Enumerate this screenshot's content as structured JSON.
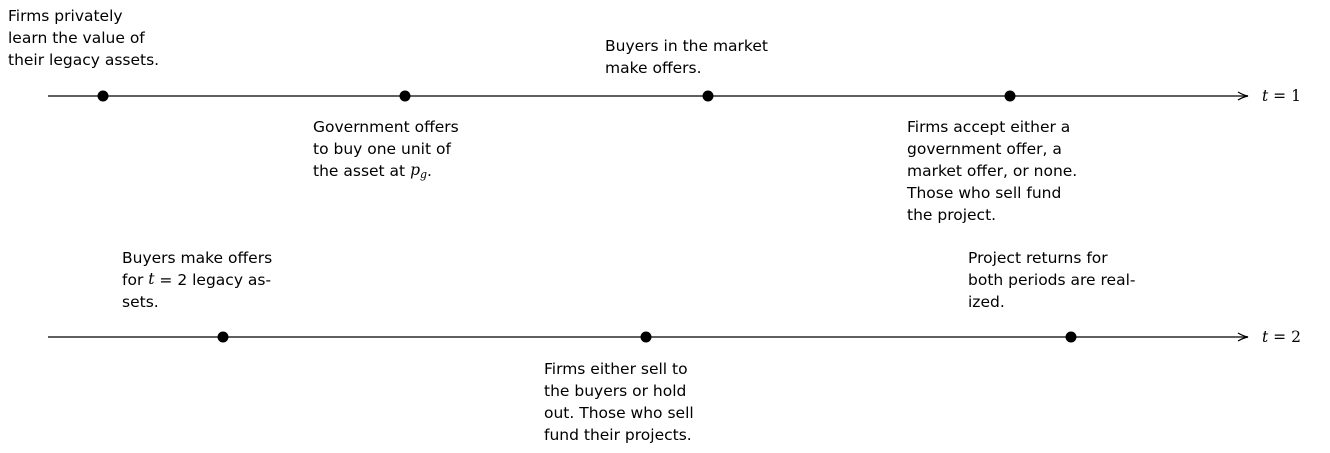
{
  "timelines": [
    {
      "label": [
        {
          "text": "t",
          "style": "math"
        },
        " = 1"
      ],
      "events": [
        {
          "position": "above",
          "lines": [
            [
              "Firms privately"
            ],
            [
              "learn the value of"
            ],
            [
              "their legacy assets."
            ]
          ]
        },
        {
          "position": "below",
          "lines": [
            [
              "Government offers"
            ],
            [
              "to buy one unit of"
            ],
            [
              "the asset at ",
              {
                "text": "p",
                "style": "math"
              },
              {
                "text": "g",
                "style": "sub"
              },
              "."
            ]
          ]
        },
        {
          "position": "above",
          "lines": [
            [
              "Buyers in the market"
            ],
            [
              "make offers."
            ]
          ]
        },
        {
          "position": "below",
          "lines": [
            [
              "Firms accept either a"
            ],
            [
              "government offer, a"
            ],
            [
              "market offer, or none."
            ],
            [
              "Those who sell fund"
            ],
            [
              "the project."
            ]
          ]
        }
      ]
    },
    {
      "label": [
        {
          "text": "t",
          "style": "math"
        },
        " = 2"
      ],
      "events": [
        {
          "position": "above",
          "lines": [
            [
              "Buyers make offers"
            ],
            [
              "for ",
              {
                "text": "t",
                "style": "math"
              },
              " = 2 legacy as-"
            ],
            [
              "sets."
            ]
          ]
        },
        {
          "position": "below",
          "lines": [
            [
              "Firms either sell to"
            ],
            [
              "the buyers or hold"
            ],
            [
              "out.  Those who sell"
            ],
            [
              "fund their projects."
            ]
          ]
        },
        {
          "position": "above",
          "lines": [
            [
              "Project returns for"
            ],
            [
              "both periods are real-"
            ],
            [
              "ized."
            ]
          ]
        }
      ]
    }
  ]
}
